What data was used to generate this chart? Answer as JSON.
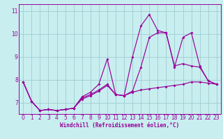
{
  "xlabel": "Windchill (Refroidissement éolien,°C)",
  "bg_color": "#c8eef0",
  "grid_color": "#a0ccd0",
  "line_color": "#990099",
  "spine_color": "#990099",
  "xlim": [
    -0.5,
    23.5
  ],
  "ylim": [
    6.5,
    11.3
  ],
  "xticks": [
    0,
    1,
    2,
    3,
    4,
    5,
    6,
    7,
    8,
    9,
    10,
    11,
    12,
    13,
    14,
    15,
    16,
    17,
    18,
    19,
    20,
    21,
    22,
    23
  ],
  "yticks": [
    7,
    8,
    9,
    10,
    11
  ],
  "lines": [
    {
      "x": [
        0,
        1,
        2,
        3,
        4,
        5,
        6,
        7,
        8,
        9,
        10,
        11,
        12,
        13,
        14,
        15,
        16,
        17,
        18,
        19,
        20,
        21,
        22,
        23
      ],
      "y": [
        7.9,
        7.05,
        6.65,
        6.7,
        6.65,
        6.7,
        6.75,
        7.25,
        7.45,
        7.8,
        8.9,
        7.35,
        7.3,
        9.0,
        10.35,
        10.85,
        10.15,
        10.05,
        8.55,
        9.85,
        10.05,
        8.6,
        7.95,
        7.8
      ]
    },
    {
      "x": [
        0,
        1,
        2,
        3,
        4,
        5,
        6,
        7,
        8,
        9,
        10,
        11,
        12,
        13,
        14,
        15,
        16,
        17,
        18,
        19,
        20,
        21,
        22,
        23
      ],
      "y": [
        7.9,
        7.05,
        6.65,
        6.7,
        6.65,
        6.7,
        6.75,
        7.15,
        7.3,
        7.5,
        7.75,
        7.35,
        7.3,
        7.45,
        7.55,
        7.6,
        7.65,
        7.7,
        7.75,
        7.8,
        7.9,
        7.9,
        7.85,
        7.8
      ]
    },
    {
      "x": [
        0,
        1,
        2,
        3,
        4,
        5,
        6,
        7,
        8,
        9,
        10,
        11,
        12,
        13,
        14,
        15,
        16,
        17,
        18,
        19,
        20,
        21,
        22,
        23
      ],
      "y": [
        7.9,
        7.05,
        6.65,
        6.7,
        6.65,
        6.7,
        6.75,
        7.2,
        7.35,
        7.55,
        7.8,
        7.35,
        7.3,
        7.5,
        8.55,
        9.85,
        10.05,
        10.05,
        8.6,
        8.7,
        8.6,
        8.55,
        7.95,
        7.8
      ]
    }
  ]
}
